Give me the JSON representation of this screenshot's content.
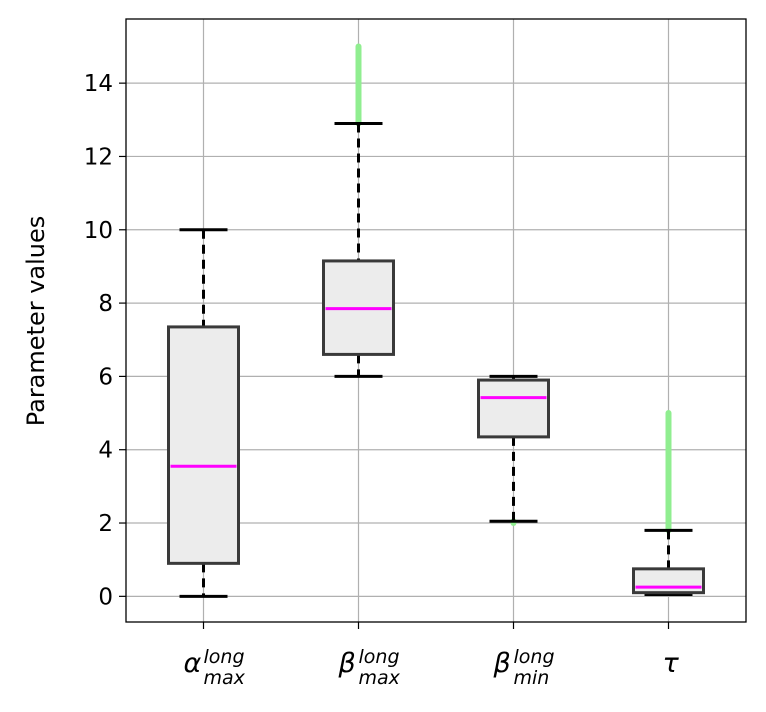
{
  "chart_data": {
    "type": "box",
    "ylabel": "Parameter values",
    "ylim": [
      -0.7,
      15.75
    ],
    "yticks": [
      "0",
      "2",
      "4",
      "6",
      "8",
      "10",
      "12",
      "14"
    ],
    "grid": true,
    "categories": [
      {
        "base": "α",
        "sup": "long",
        "sub": "max"
      },
      {
        "base": "β",
        "sup": "long",
        "sub": "max"
      },
      {
        "base": "β",
        "sup": "long",
        "sub": "min"
      },
      {
        "base": "τ",
        "sup": "",
        "sub": ""
      }
    ],
    "boxes": [
      {
        "whisker_low": 0.0,
        "q1": 0.9,
        "median": 3.55,
        "q3": 7.35,
        "whisker_high": 10.0,
        "outlier_range": null
      },
      {
        "whisker_low": 6.0,
        "q1": 6.6,
        "median": 7.85,
        "q3": 9.15,
        "whisker_high": 12.9,
        "outlier_range": [
          12.9,
          15.0
        ]
      },
      {
        "whisker_low": 2.05,
        "q1": 4.35,
        "median": 5.42,
        "q3": 5.9,
        "whisker_high": 6.0,
        "outlier_range": [
          2.0,
          2.05
        ]
      },
      {
        "whisker_low": 0.05,
        "q1": 0.1,
        "median": 0.25,
        "q3": 0.75,
        "whisker_high": 1.8,
        "outlier_range": [
          1.8,
          5.0
        ]
      }
    ],
    "colors": {
      "box_fill": "#ececec",
      "box_edge": "#3a3a3a",
      "median": "#ff00ff",
      "whisker": "#000000",
      "outliers": "#90ee90",
      "grid": "#b0b0b0"
    }
  }
}
